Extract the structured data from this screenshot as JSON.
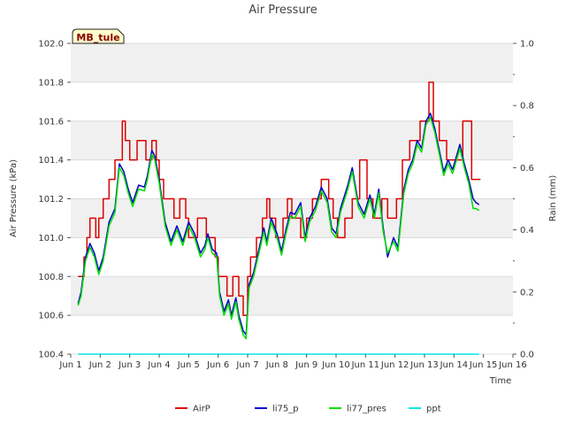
{
  "station_label": "MB_tule",
  "chart_data": {
    "type": "line",
    "title": "Air Pressure",
    "xlabel": "Time",
    "ylabel": "Air Pressure (kPa)",
    "y2label": "Rain (mm)",
    "xlim": [
      1,
      16
    ],
    "ylim": [
      100.4,
      102.0
    ],
    "y2lim": [
      0.0,
      1.0
    ],
    "x_ticks": [
      1,
      2,
      3,
      4,
      5,
      6,
      7,
      8,
      9,
      10,
      11,
      12,
      13,
      14,
      15,
      16
    ],
    "x_tick_labels": [
      "Jun 1",
      "Jun 2",
      "Jun 3",
      "Jun 4",
      "Jun 5",
      "Jun 6",
      "Jun 7",
      "Jun 8",
      "Jun 9",
      "Jun 10",
      "Jun 11",
      "Jun 12",
      "Jun 13",
      "Jun 14",
      "Jun 15",
      "Jun 16"
    ],
    "y_ticks": [
      100.4,
      100.6,
      100.8,
      101.0,
      101.2,
      101.4,
      101.6,
      101.8,
      102.0
    ],
    "y_tick_labels": [
      "100.4",
      "100.6",
      "100.8",
      "101.0",
      "101.2",
      "101.4",
      "101.6",
      "101.8",
      "102.0"
    ],
    "y2_ticks": [
      0.0,
      0.2,
      0.4,
      0.6,
      0.8,
      1.0
    ],
    "y2_tick_labels": [
      "0.0",
      "0.2",
      "0.4",
      "0.6",
      "0.8",
      "1.0"
    ],
    "series": [
      {
        "name": "AirP",
        "color": "#dd0000",
        "axis": "left",
        "step": true,
        "x": [
          1.25,
          1.45,
          1.55,
          1.65,
          1.85,
          1.95,
          2.1,
          2.3,
          2.5,
          2.75,
          2.85,
          3.0,
          3.25,
          3.55,
          3.75,
          3.9,
          4.0,
          4.15,
          4.5,
          4.7,
          4.9,
          5.0,
          5.3,
          5.6,
          5.9,
          6.0,
          6.1,
          6.3,
          6.5,
          6.7,
          6.85,
          7.0,
          7.1,
          7.3,
          7.5,
          7.65,
          7.75,
          7.95,
          8.2,
          8.35,
          8.5,
          8.8,
          9.0,
          9.2,
          9.5,
          9.75,
          9.9,
          10.05,
          10.3,
          10.55,
          10.8,
          11.05,
          11.25,
          11.55,
          11.75,
          12.05,
          12.25,
          12.5,
          12.85,
          13.15,
          13.3,
          13.5,
          13.75,
          14.0,
          14.3,
          14.6,
          14.8,
          14.9
        ],
        "values": [
          100.8,
          100.9,
          101.0,
          101.1,
          101.0,
          101.1,
          101.2,
          101.3,
          101.4,
          101.6,
          101.5,
          101.4,
          101.5,
          101.4,
          101.5,
          101.4,
          101.3,
          101.2,
          101.1,
          101.2,
          101.1,
          101.0,
          101.1,
          101.0,
          100.9,
          100.8,
          100.8,
          100.7,
          100.8,
          100.7,
          100.6,
          100.8,
          100.9,
          101.0,
          101.1,
          101.2,
          101.1,
          101.0,
          101.1,
          101.2,
          101.1,
          101.0,
          101.1,
          101.2,
          101.3,
          101.2,
          101.1,
          101.0,
          101.1,
          101.2,
          101.4,
          101.2,
          101.1,
          101.2,
          101.1,
          101.2,
          101.4,
          101.5,
          101.6,
          101.8,
          101.6,
          101.5,
          101.4,
          101.4,
          101.6,
          101.3,
          101.3,
          101.3
        ]
      },
      {
        "name": "li75_p",
        "color": "#0000cc",
        "axis": "left",
        "step": false,
        "x": [
          1.25,
          1.35,
          1.5,
          1.65,
          1.8,
          1.95,
          2.1,
          2.3,
          2.5,
          2.65,
          2.8,
          2.95,
          3.1,
          3.3,
          3.5,
          3.6,
          3.75,
          3.85,
          4.0,
          4.2,
          4.4,
          4.6,
          4.8,
          5.0,
          5.2,
          5.4,
          5.55,
          5.65,
          5.8,
          5.95,
          6.05,
          6.2,
          6.35,
          6.45,
          6.6,
          6.7,
          6.85,
          6.95,
          7.05,
          7.2,
          7.4,
          7.55,
          7.65,
          7.8,
          8.0,
          8.15,
          8.3,
          8.45,
          8.6,
          8.8,
          8.95,
          9.1,
          9.3,
          9.5,
          9.7,
          9.85,
          10.0,
          10.15,
          10.4,
          10.55,
          10.75,
          10.95,
          11.15,
          11.3,
          11.45,
          11.6,
          11.75,
          11.95,
          12.1,
          12.3,
          12.45,
          12.6,
          12.75,
          12.9,
          13.05,
          13.2,
          13.35,
          13.5,
          13.65,
          13.8,
          13.95,
          14.05,
          14.2,
          14.35,
          14.5,
          14.65,
          14.75,
          14.85
        ],
        "values": [
          100.66,
          100.72,
          100.9,
          100.97,
          100.92,
          100.83,
          100.9,
          101.08,
          101.15,
          101.38,
          101.34,
          101.25,
          101.18,
          101.27,
          101.26,
          101.32,
          101.45,
          101.42,
          101.3,
          101.08,
          100.98,
          101.06,
          100.98,
          101.08,
          101.02,
          100.92,
          100.96,
          101.02,
          100.94,
          100.92,
          100.72,
          100.62,
          100.68,
          100.6,
          100.69,
          100.6,
          100.52,
          100.5,
          100.76,
          100.82,
          100.95,
          101.05,
          100.98,
          101.1,
          101.02,
          100.93,
          101.04,
          101.13,
          101.12,
          101.18,
          101.0,
          101.1,
          101.16,
          101.26,
          101.2,
          101.05,
          101.02,
          101.15,
          101.27,
          101.36,
          101.18,
          101.12,
          101.22,
          101.12,
          101.25,
          101.05,
          100.9,
          101.0,
          100.95,
          101.25,
          101.35,
          101.4,
          101.5,
          101.46,
          101.6,
          101.64,
          101.56,
          101.45,
          101.34,
          101.4,
          101.35,
          101.4,
          101.48,
          101.38,
          101.3,
          101.2,
          101.18,
          101.17
        ]
      },
      {
        "name": "li77_pres",
        "color": "#00dd00",
        "axis": "left",
        "step": false,
        "x": [
          1.25,
          1.35,
          1.5,
          1.65,
          1.8,
          1.95,
          2.1,
          2.3,
          2.5,
          2.65,
          2.8,
          2.95,
          3.1,
          3.3,
          3.5,
          3.6,
          3.75,
          3.85,
          4.0,
          4.2,
          4.4,
          4.6,
          4.8,
          5.0,
          5.2,
          5.4,
          5.55,
          5.65,
          5.8,
          5.95,
          6.05,
          6.2,
          6.35,
          6.45,
          6.6,
          6.7,
          6.85,
          6.95,
          7.05,
          7.2,
          7.4,
          7.55,
          7.65,
          7.8,
          8.0,
          8.15,
          8.3,
          8.45,
          8.6,
          8.8,
          8.95,
          9.1,
          9.3,
          9.5,
          9.7,
          9.85,
          10.0,
          10.15,
          10.4,
          10.55,
          10.75,
          10.95,
          11.15,
          11.3,
          11.45,
          11.6,
          11.75,
          11.95,
          12.1,
          12.3,
          12.45,
          12.6,
          12.75,
          12.9,
          13.05,
          13.2,
          13.35,
          13.5,
          13.65,
          13.8,
          13.95,
          14.05,
          14.2,
          14.35,
          14.5,
          14.65,
          14.75,
          14.85
        ],
        "values": [
          100.65,
          100.7,
          100.88,
          100.95,
          100.9,
          100.81,
          100.88,
          101.06,
          101.13,
          101.36,
          101.32,
          101.23,
          101.16,
          101.25,
          101.24,
          101.3,
          101.43,
          101.4,
          101.28,
          101.06,
          100.96,
          101.04,
          100.96,
          101.06,
          101.0,
          100.9,
          100.94,
          101.0,
          100.92,
          100.9,
          100.7,
          100.6,
          100.66,
          100.58,
          100.67,
          100.58,
          100.5,
          100.48,
          100.74,
          100.8,
          100.93,
          101.03,
          100.96,
          101.08,
          101.0,
          100.91,
          101.02,
          101.11,
          101.1,
          101.16,
          100.98,
          101.08,
          101.14,
          101.24,
          101.18,
          101.03,
          101.0,
          101.13,
          101.25,
          101.34,
          101.16,
          101.1,
          101.2,
          101.1,
          101.23,
          101.03,
          100.92,
          100.98,
          100.93,
          101.23,
          101.33,
          101.38,
          101.48,
          101.44,
          101.58,
          101.62,
          101.54,
          101.43,
          101.32,
          101.38,
          101.33,
          101.38,
          101.46,
          101.36,
          101.28,
          101.15,
          101.15,
          101.14
        ]
      },
      {
        "name": "ppt",
        "color": "#00e5e5",
        "axis": "right",
        "step": false,
        "x": [
          1.25,
          14.85
        ],
        "values": [
          0.0,
          0.0
        ]
      }
    ],
    "legend": [
      "AirP",
      "li75_p",
      "li77_pres",
      "ppt"
    ],
    "legend_position": "bottom-center",
    "grid": true
  }
}
